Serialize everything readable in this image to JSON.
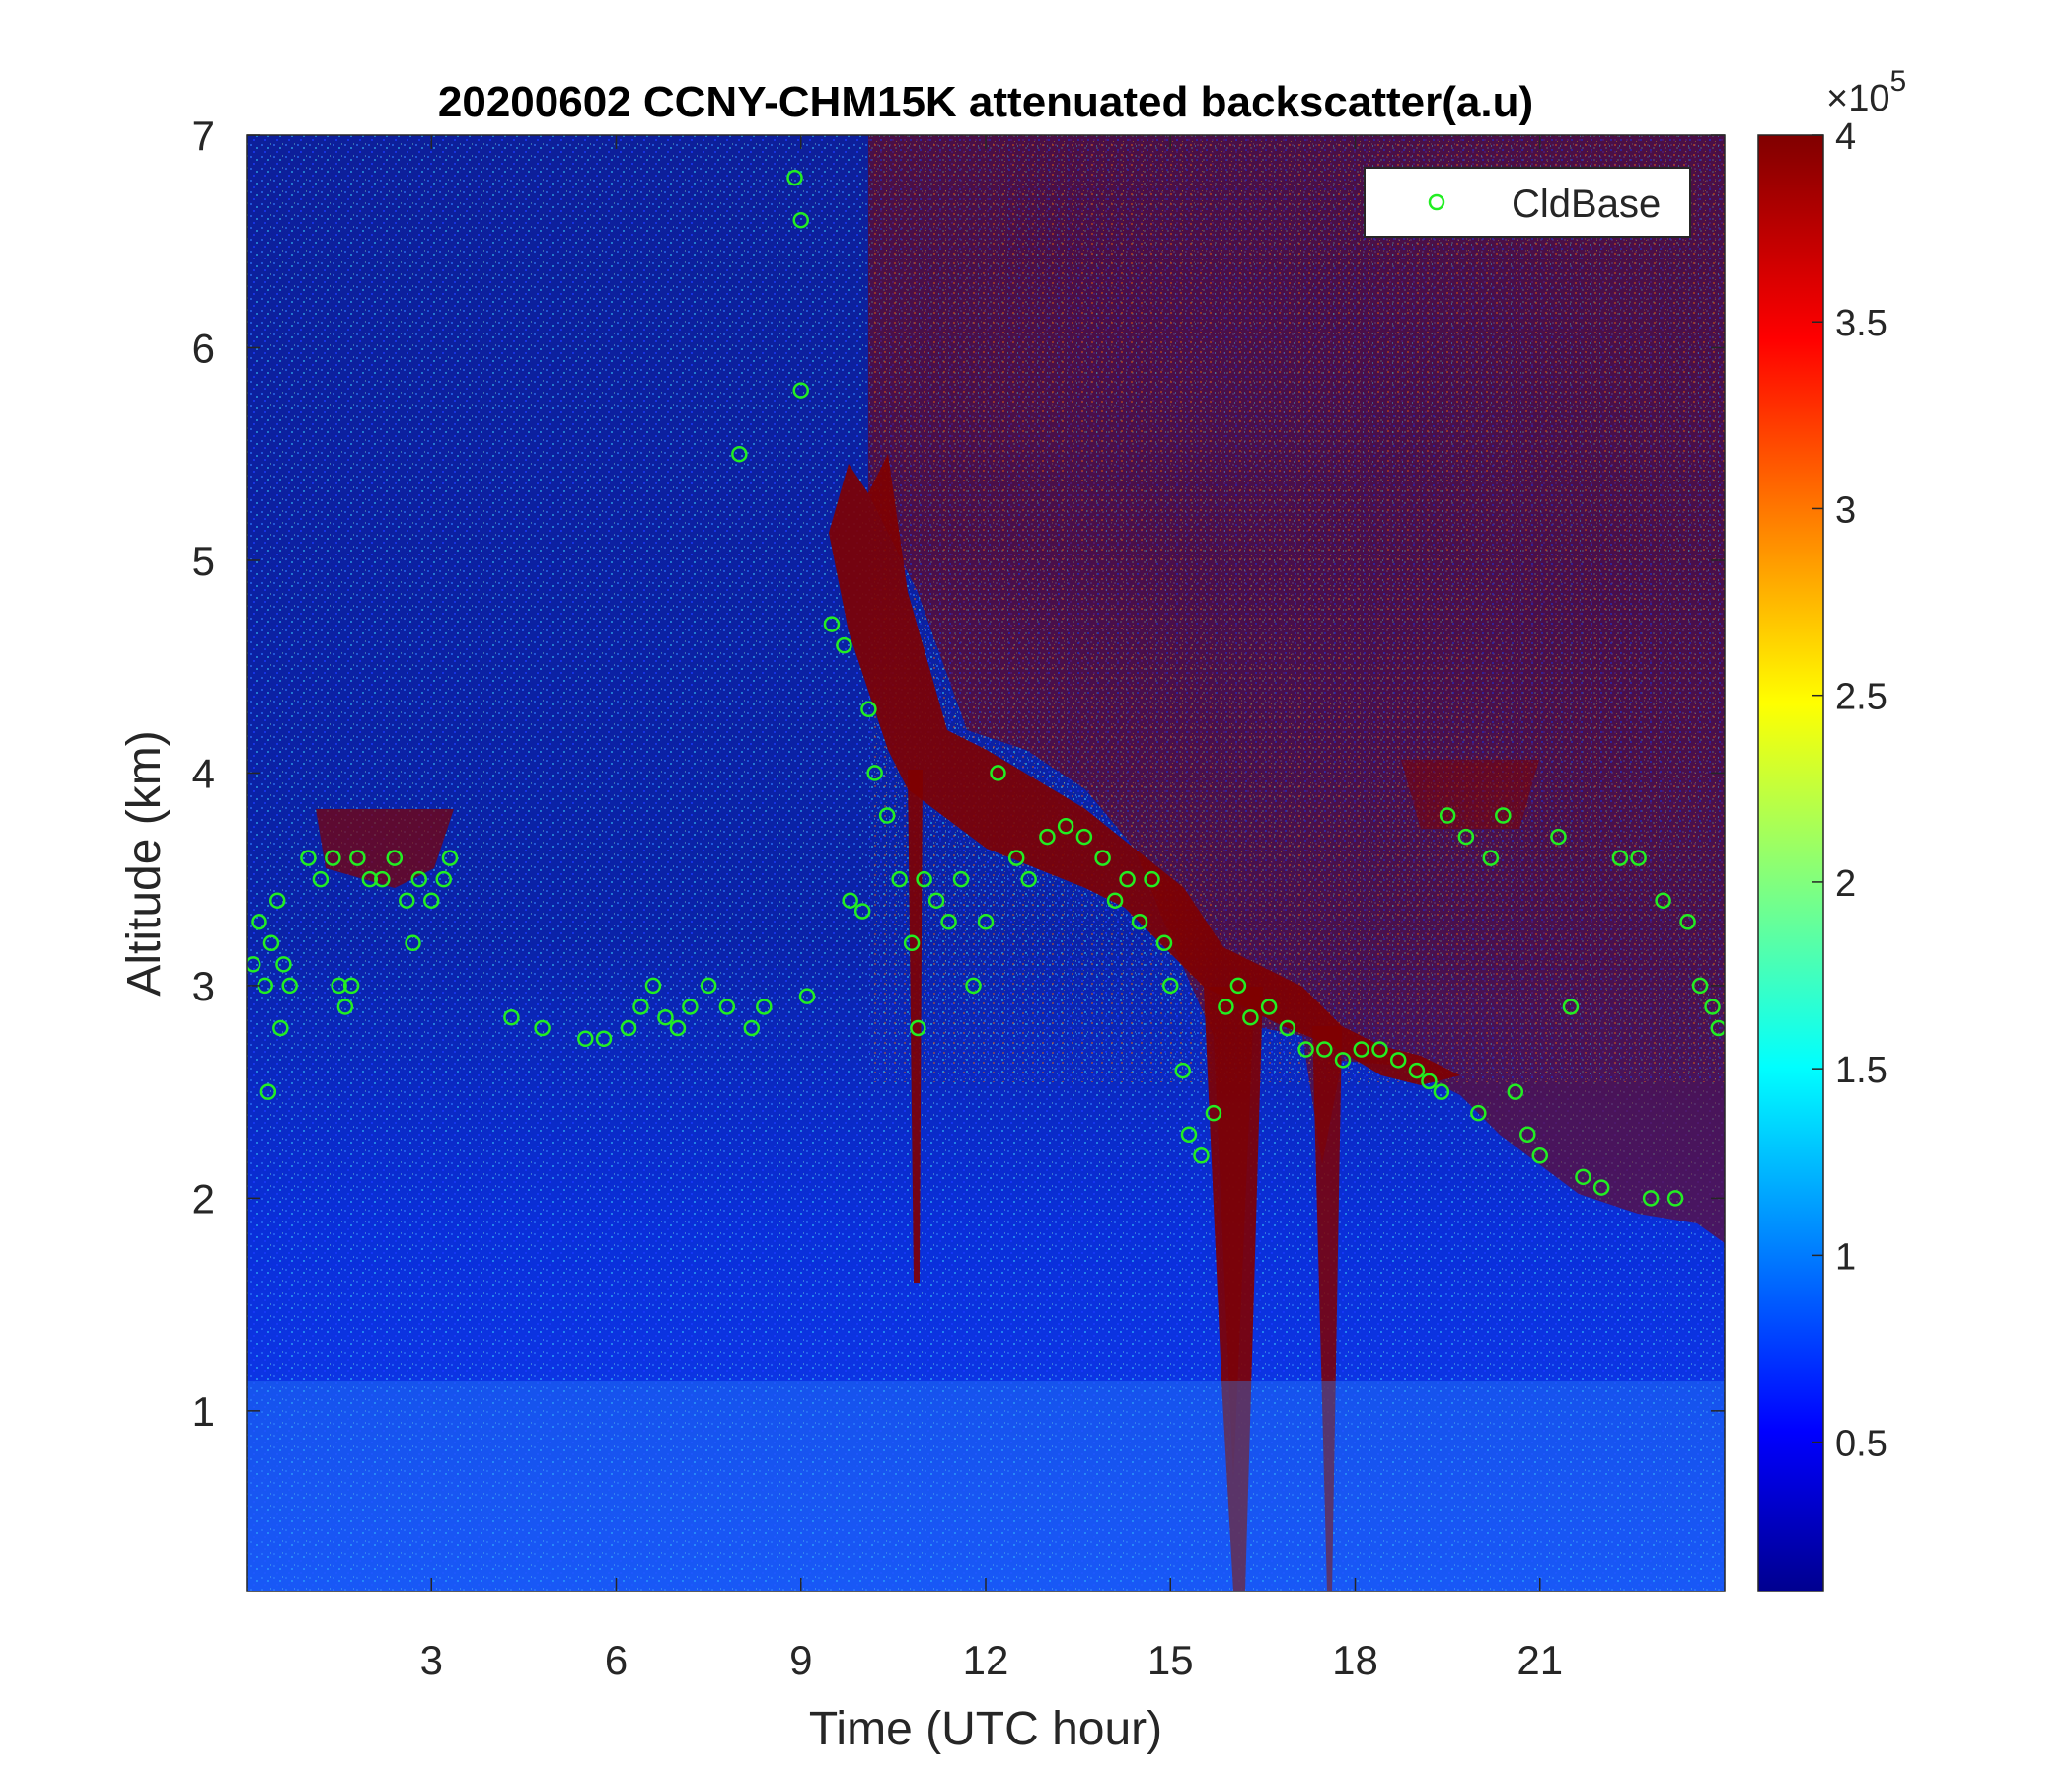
{
  "chart_data": {
    "type": "heatmap",
    "title": "20200602 CCNY-CHM15K attenuated backscatter(a.u)",
    "xlabel": "Time (UTC hour)",
    "ylabel": "Altitude (km)",
    "xlim": [
      0,
      24
    ],
    "ylim": [
      0.15,
      7
    ],
    "xticks": [
      3,
      6,
      9,
      12,
      15,
      18,
      21
    ],
    "xtick_labels": [
      "3",
      "6",
      "9",
      "12",
      "15",
      "18",
      "21"
    ],
    "yticks": [
      1,
      2,
      3,
      4,
      5,
      6,
      7
    ],
    "ytick_labels": [
      "1",
      "2",
      "3",
      "4",
      "5",
      "6",
      "7"
    ],
    "colorbar": {
      "range": [
        0.1,
        4
      ],
      "ticks": [
        0.5,
        1,
        1.5,
        2,
        2.5,
        3,
        3.5,
        4
      ],
      "tick_labels": [
        "0.5",
        "1",
        "1.5",
        "2",
        "2.5",
        "3",
        "3.5",
        "4"
      ],
      "exponent_multiplier": "×10",
      "exponent_power": "5",
      "colormap": "jet"
    },
    "legend": {
      "position": "top-right",
      "entries": [
        "CldBase"
      ]
    },
    "series": [
      {
        "name": "CldBase",
        "marker": "open-circle",
        "color": "#22ee22",
        "points": [
          [
            0.1,
            3.1
          ],
          [
            0.2,
            3.3
          ],
          [
            0.3,
            3.0
          ],
          [
            0.35,
            2.5
          ],
          [
            0.4,
            3.2
          ],
          [
            0.5,
            3.4
          ],
          [
            0.55,
            2.8
          ],
          [
            0.6,
            3.1
          ],
          [
            0.7,
            3.0
          ],
          [
            1.0,
            3.6
          ],
          [
            1.2,
            3.5
          ],
          [
            1.4,
            3.6
          ],
          [
            1.5,
            3.0
          ],
          [
            1.6,
            2.9
          ],
          [
            1.7,
            3.0
          ],
          [
            1.8,
            3.6
          ],
          [
            2.0,
            3.5
          ],
          [
            2.2,
            3.5
          ],
          [
            2.4,
            3.6
          ],
          [
            2.6,
            3.4
          ],
          [
            2.7,
            3.2
          ],
          [
            2.8,
            3.5
          ],
          [
            3.0,
            3.4
          ],
          [
            3.2,
            3.5
          ],
          [
            3.3,
            3.6
          ],
          [
            4.3,
            2.85
          ],
          [
            4.8,
            2.8
          ],
          [
            5.5,
            2.75
          ],
          [
            5.8,
            2.75
          ],
          [
            6.2,
            2.8
          ],
          [
            6.4,
            2.9
          ],
          [
            6.6,
            3.0
          ],
          [
            6.8,
            2.85
          ],
          [
            7.0,
            2.8
          ],
          [
            7.2,
            2.9
          ],
          [
            7.5,
            3.0
          ],
          [
            7.8,
            2.9
          ],
          [
            8.0,
            5.5
          ],
          [
            8.2,
            2.8
          ],
          [
            8.4,
            2.9
          ],
          [
            8.9,
            6.8
          ],
          [
            9.0,
            6.6
          ],
          [
            9.0,
            5.8
          ],
          [
            9.1,
            2.95
          ],
          [
            9.5,
            4.7
          ],
          [
            9.7,
            4.6
          ],
          [
            9.8,
            3.4
          ],
          [
            10.0,
            3.35
          ],
          [
            10.1,
            4.3
          ],
          [
            10.2,
            4.0
          ],
          [
            10.4,
            3.8
          ],
          [
            10.6,
            3.5
          ],
          [
            10.8,
            3.2
          ],
          [
            10.9,
            2.8
          ],
          [
            11.0,
            3.5
          ],
          [
            11.2,
            3.4
          ],
          [
            11.4,
            3.3
          ],
          [
            11.6,
            3.5
          ],
          [
            11.8,
            3.0
          ],
          [
            12.0,
            3.3
          ],
          [
            12.2,
            4.0
          ],
          [
            12.5,
            3.6
          ],
          [
            12.7,
            3.5
          ],
          [
            13.0,
            3.7
          ],
          [
            13.3,
            3.75
          ],
          [
            13.6,
            3.7
          ],
          [
            13.9,
            3.6
          ],
          [
            14.1,
            3.4
          ],
          [
            14.3,
            3.5
          ],
          [
            14.5,
            3.3
          ],
          [
            14.7,
            3.5
          ],
          [
            14.9,
            3.2
          ],
          [
            15.0,
            3.0
          ],
          [
            15.2,
            2.6
          ],
          [
            15.3,
            2.3
          ],
          [
            15.5,
            2.2
          ],
          [
            15.7,
            2.4
          ],
          [
            15.9,
            2.9
          ],
          [
            16.1,
            3.0
          ],
          [
            16.3,
            2.85
          ],
          [
            16.6,
            2.9
          ],
          [
            16.9,
            2.8
          ],
          [
            17.2,
            2.7
          ],
          [
            17.5,
            2.7
          ],
          [
            17.8,
            2.65
          ],
          [
            18.1,
            2.7
          ],
          [
            18.4,
            2.7
          ],
          [
            18.7,
            2.65
          ],
          [
            19.0,
            2.6
          ],
          [
            19.2,
            2.55
          ],
          [
            19.4,
            2.5
          ],
          [
            19.5,
            3.8
          ],
          [
            19.8,
            3.7
          ],
          [
            20.0,
            2.4
          ],
          [
            20.2,
            3.6
          ],
          [
            20.4,
            3.8
          ],
          [
            20.6,
            2.5
          ],
          [
            20.8,
            2.3
          ],
          [
            21.0,
            2.2
          ],
          [
            21.3,
            3.7
          ],
          [
            21.5,
            2.9
          ],
          [
            21.7,
            2.1
          ],
          [
            22.0,
            2.05
          ],
          [
            22.3,
            3.6
          ],
          [
            22.6,
            3.6
          ],
          [
            22.8,
            2.0
          ],
          [
            23.0,
            3.4
          ],
          [
            23.2,
            2.0
          ],
          [
            23.4,
            3.3
          ],
          [
            23.6,
            3.0
          ],
          [
            23.8,
            2.9
          ],
          [
            23.9,
            2.8
          ]
        ]
      }
    ]
  }
}
